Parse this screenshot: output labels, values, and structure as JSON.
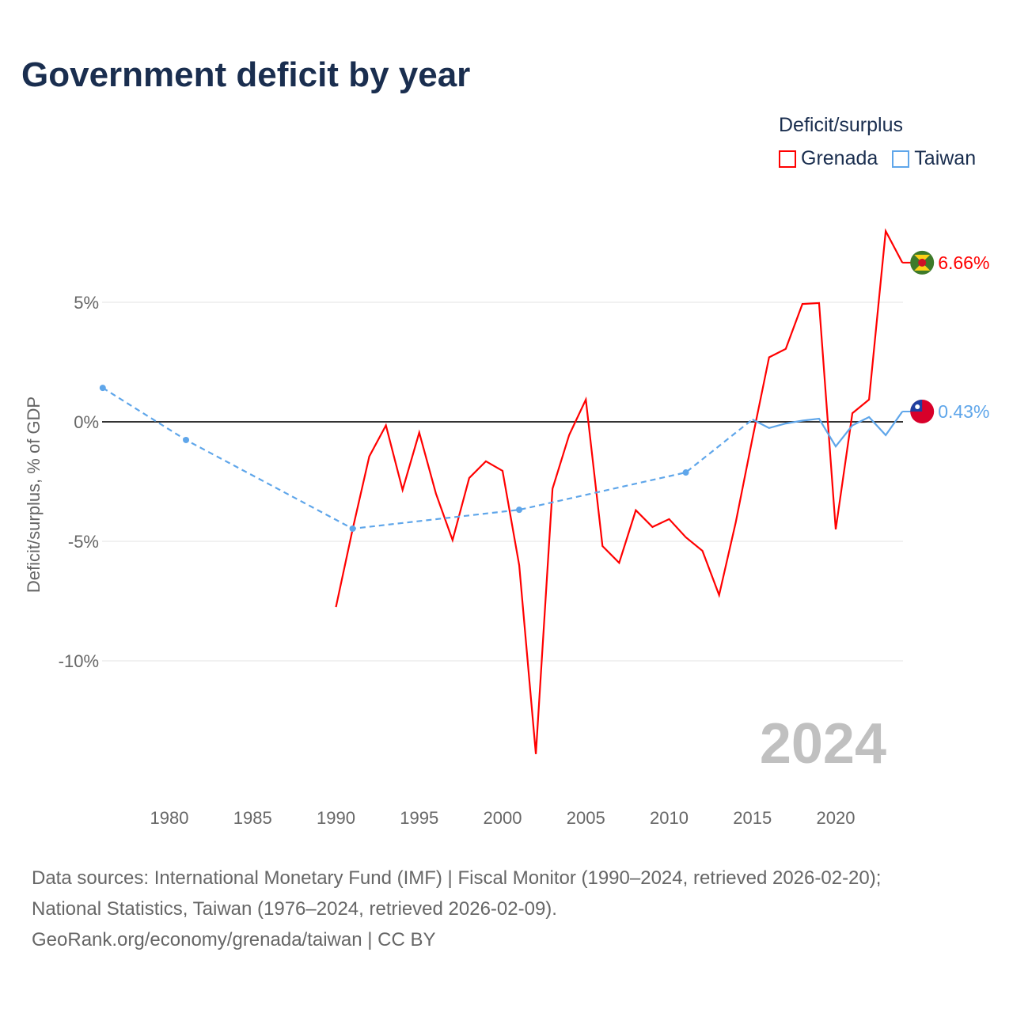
{
  "chart_data": {
    "type": "line",
    "title": "Government deficit by year",
    "ylabel": "Deficit/surplus, % of GDP",
    "xlabel": "",
    "ylim": [
      -14,
      8.5
    ],
    "xlim": [
      1976,
      2024
    ],
    "x_ticks": [
      "1980",
      "1985",
      "1990",
      "1995",
      "2000",
      "2005",
      "2010",
      "2015",
      "2020"
    ],
    "x_tick_values": [
      1980,
      1985,
      1990,
      1995,
      2000,
      2005,
      2010,
      2015,
      2020
    ],
    "y_ticks": [
      "5%",
      "0%",
      "-5%",
      "-10%"
    ],
    "y_tick_values": [
      5,
      0,
      -5,
      -10
    ],
    "grid": true,
    "legend_title": "Deficit/surplus",
    "legend_position": "top-right",
    "year_watermark": "2024",
    "series": [
      {
        "name": "Grenada",
        "color": "#ff0000",
        "end_label": "6.66%",
        "x": [
          1990,
          1991,
          1992,
          1993,
          1994,
          1995,
          1996,
          1997,
          1998,
          1999,
          2000,
          2001,
          2002,
          2003,
          2004,
          2005,
          2006,
          2007,
          2008,
          2009,
          2010,
          2011,
          2012,
          2013,
          2014,
          2015,
          2016,
          2017,
          2018,
          2019,
          2020,
          2021,
          2022,
          2023,
          2024
        ],
        "values": [
          -7.75,
          -4.5,
          -1.45,
          -0.15,
          -2.85,
          -0.45,
          -3.0,
          -4.95,
          -2.35,
          -1.65,
          -2.05,
          -6.0,
          -13.9,
          -2.8,
          -0.55,
          0.93,
          -5.2,
          -5.9,
          -3.7,
          -4.4,
          -4.07,
          -4.83,
          -5.4,
          -7.25,
          -4.2,
          -0.7,
          2.7,
          3.05,
          4.93,
          4.97,
          -4.5,
          0.36,
          0.93,
          7.98,
          6.66
        ]
      },
      {
        "name": "Taiwan",
        "color": "#5fa6ea",
        "end_label": "0.43%",
        "x": [
          1976,
          1981,
          1991,
          2001,
          2011,
          2015,
          2016,
          2017,
          2018,
          2019,
          2020,
          2021,
          2022,
          2023,
          2024
        ],
        "values": [
          1.42,
          -0.76,
          -4.47,
          -3.68,
          -2.12,
          0.1,
          -0.26,
          -0.07,
          0.05,
          0.13,
          -1.03,
          -0.15,
          0.2,
          -0.56,
          0.43
        ],
        "sparse_until": 2015
      }
    ]
  },
  "footer": {
    "line1": "Data sources: International Monetary Fund (IMF) | Fiscal Monitor (1990–2024, retrieved 2026-02-20);",
    "line2": "National Statistics, Taiwan (1976–2024, retrieved 2026-02-09).",
    "line3": "GeoRank.org/economy/grenada/taiwan | CC BY"
  }
}
